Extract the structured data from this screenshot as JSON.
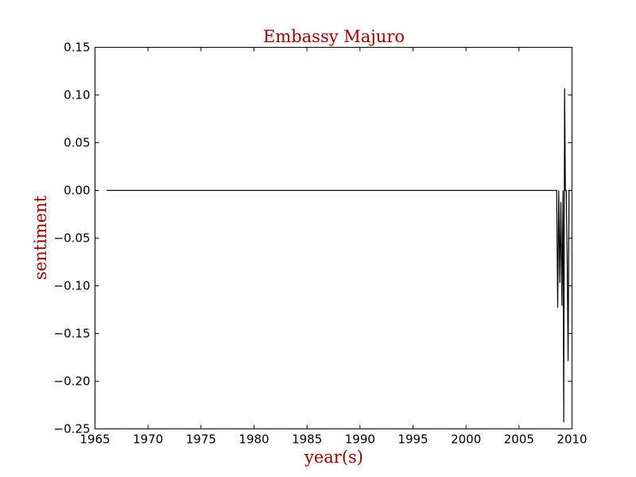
{
  "chart_data": {
    "type": "line",
    "title": "Embassy Majuro",
    "xlabel": "year(s)",
    "ylabel": "sentiment",
    "xlim": [
      1965,
      2010
    ],
    "ylim": [
      -0.25,
      0.15
    ],
    "xticks": [
      1965,
      1970,
      1975,
      1980,
      1985,
      1990,
      1995,
      2000,
      2005,
      2010
    ],
    "yticks": [
      0.15,
      0.1,
      0.05,
      0.0,
      -0.05,
      -0.1,
      -0.15,
      -0.2,
      -0.25
    ],
    "xtick_labels": [
      "1965",
      "1970",
      "1975",
      "1980",
      "1985",
      "1990",
      "1995",
      "2000",
      "2005",
      "2010"
    ],
    "ytick_labels": [
      "0.15",
      "0.10",
      "0.05",
      "0.00",
      "−0.05",
      "−0.10",
      "−0.15",
      "−0.20",
      "−0.25"
    ],
    "grid": false,
    "colors": {
      "title": "#8b0000",
      "line": "#000000"
    },
    "series": [
      {
        "x": [
          1966.1,
          2008.4,
          2008.55,
          2008.65,
          2008.75,
          2008.85,
          2008.95,
          2009.05,
          2009.15,
          2009.22,
          2009.3,
          2009.38,
          2009.46,
          2009.55,
          2009.63,
          2009.72,
          2009.8,
          2009.9,
          2010.0
        ],
        "y": [
          0.0,
          0.0,
          0.0,
          -0.123,
          0.0,
          -0.097,
          -0.012,
          -0.121,
          0.0,
          -0.243,
          0.107,
          0.0,
          0.0,
          -0.075,
          -0.179,
          0.0,
          0.0,
          0.0,
          0.0
        ]
      }
    ]
  }
}
